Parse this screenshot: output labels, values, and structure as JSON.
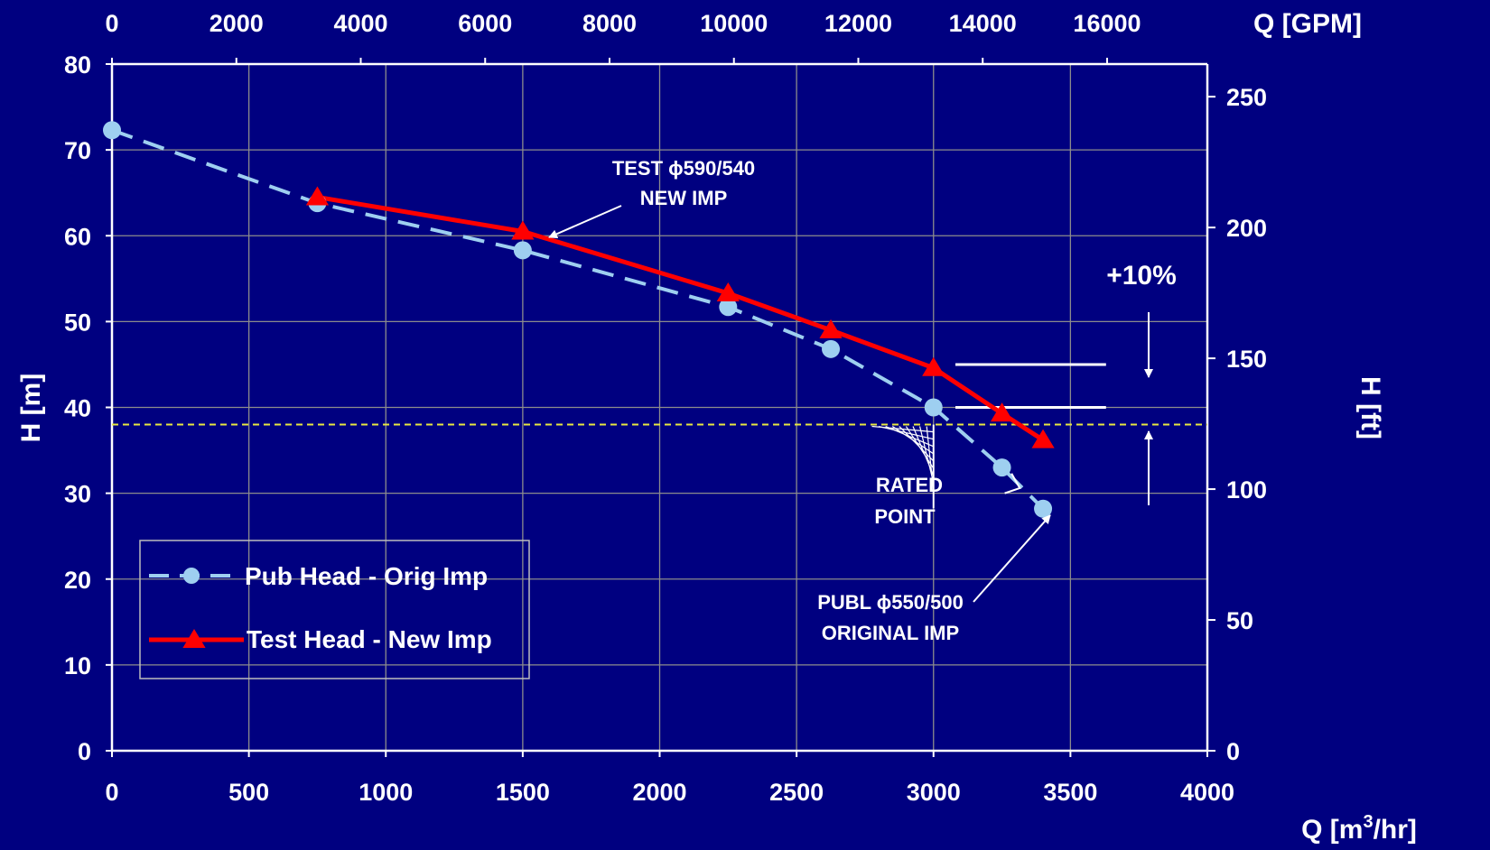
{
  "colors": {
    "background": "#000080",
    "grid": "#8c8c8c",
    "axis": "#ffffff",
    "pub_series": "#9ecff0",
    "test_series": "#ff0000",
    "rated_line": "#e8e840"
  },
  "chart_data": {
    "type": "line",
    "x_bottom": {
      "label": "Q [m",
      "label_sup": "3",
      "label_tail": "/hr]",
      "range": [
        0,
        4000
      ],
      "ticks": [
        "0",
        "500",
        "1000",
        "1500",
        "2000",
        "2500",
        "3000",
        "3500",
        "4000"
      ]
    },
    "x_top": {
      "label": "Q [GPM]",
      "range": [
        0,
        17612
      ],
      "ticks": [
        "0",
        "2000",
        "4000",
        "6000",
        "8000",
        "10000",
        "12000",
        "14000",
        "16000"
      ]
    },
    "y_left": {
      "label": "H [m]",
      "range": [
        0,
        80
      ],
      "ticks": [
        "0",
        "10",
        "20",
        "30",
        "40",
        "50",
        "60",
        "70",
        "80"
      ]
    },
    "y_right": {
      "label": "H [ft]",
      "range": [
        0,
        262.47
      ],
      "ticks": [
        "0",
        "50",
        "100",
        "150",
        "200",
        "250"
      ]
    },
    "grid": true,
    "series": [
      {
        "name": "Pub Head - Orig Imp",
        "style": "dashed",
        "marker": "circle",
        "x": [
          0,
          750,
          1500,
          2250,
          2625,
          3000,
          3250,
          3400
        ],
        "y": [
          72.3,
          63.8,
          58.3,
          51.7,
          46.8,
          40.0,
          33.0,
          28.2
        ]
      },
      {
        "name": "Test Head - New Imp",
        "style": "solid",
        "marker": "triangle",
        "x": [
          750,
          1500,
          2250,
          2625,
          3000,
          3250,
          3400
        ],
        "y": [
          64.5,
          60.5,
          53.3,
          49.0,
          44.6,
          39.3,
          36.2
        ]
      }
    ],
    "rated_head": 38,
    "rated_flow": 3000,
    "reference_lines": [
      {
        "y": 45,
        "x_from": 3080,
        "x_to": 3630
      },
      {
        "y": 40,
        "x_from": 3080,
        "x_to": 3630
      }
    ],
    "legend": {
      "placement": "lower-left"
    },
    "annotations": {
      "test_line1": "TEST ϕ590/540",
      "test_line2": "NEW IMP",
      "publ_line1": "PUBL ϕ550/500",
      "publ_line2": "ORIGINAL IMP",
      "rated_line1": "RATED",
      "rated_line2": "POINT",
      "plus10": "+10%"
    }
  }
}
